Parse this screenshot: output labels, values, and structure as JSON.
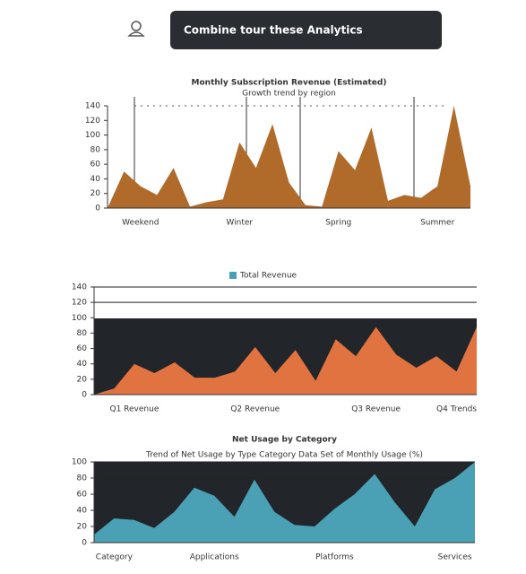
{
  "header": {
    "button": "Combine tour these Analytics"
  },
  "chart_data": [
    {
      "type": "area",
      "title": "Monthly Subscription Revenue (Estimated)",
      "subtitle": "Growth trend by region",
      "categories": [
        null,
        null,
        "Weekend",
        null,
        null,
        null,
        null,
        null,
        "Winter",
        null,
        null,
        null,
        null,
        null,
        "Spring",
        null,
        null,
        null,
        null,
        null,
        "Summer",
        null,
        null
      ],
      "values": [
        0,
        50,
        30,
        18,
        55,
        2,
        8,
        12,
        90,
        55,
        115,
        35,
        4,
        2,
        78,
        52,
        110,
        10,
        18,
        14,
        30,
        140,
        30
      ],
      "color": "#b06a2a",
      "ylim": [
        0,
        140
      ],
      "yticks": [
        0,
        20,
        40,
        60,
        80,
        100,
        120,
        140
      ],
      "grid": false
    },
    {
      "type": "area",
      "legend": "Total Revenue",
      "categories": [
        null,
        null,
        "Q1 Revenue",
        null,
        null,
        null,
        null,
        null,
        "Q2 Revenue",
        null,
        null,
        null,
        null,
        null,
        "Q3 Revenue",
        null,
        null,
        null,
        "Q4 Trends",
        null
      ],
      "values": [
        0,
        8,
        40,
        28,
        42,
        22,
        22,
        30,
        62,
        28,
        58,
        18,
        72,
        50,
        88,
        52,
        35,
        50,
        30,
        88
      ],
      "color": "#e0733f",
      "ylim": [
        0,
        140
      ],
      "yticks": [
        0,
        20,
        40,
        60,
        80,
        100,
        120,
        140
      ],
      "grid": false
    },
    {
      "type": "area",
      "title": "Net Usage by Category",
      "subtitle": "Trend of Net Usage by Type Category Data Set of Monthly Usage (%)",
      "categories": [
        null,
        "Category",
        null,
        null,
        null,
        null,
        "Applications",
        null,
        null,
        null,
        null,
        null,
        "Platforms",
        null,
        null,
        null,
        null,
        null,
        "Services",
        null
      ],
      "values": [
        10,
        30,
        28,
        18,
        38,
        68,
        58,
        32,
        78,
        38,
        22,
        20,
        42,
        60,
        85,
        50,
        20,
        66,
        80,
        100
      ],
      "color": "#4aa0b5",
      "ylim": [
        0,
        100
      ],
      "yticks": [
        0,
        20,
        40,
        60,
        80,
        100
      ],
      "grid": false
    }
  ]
}
